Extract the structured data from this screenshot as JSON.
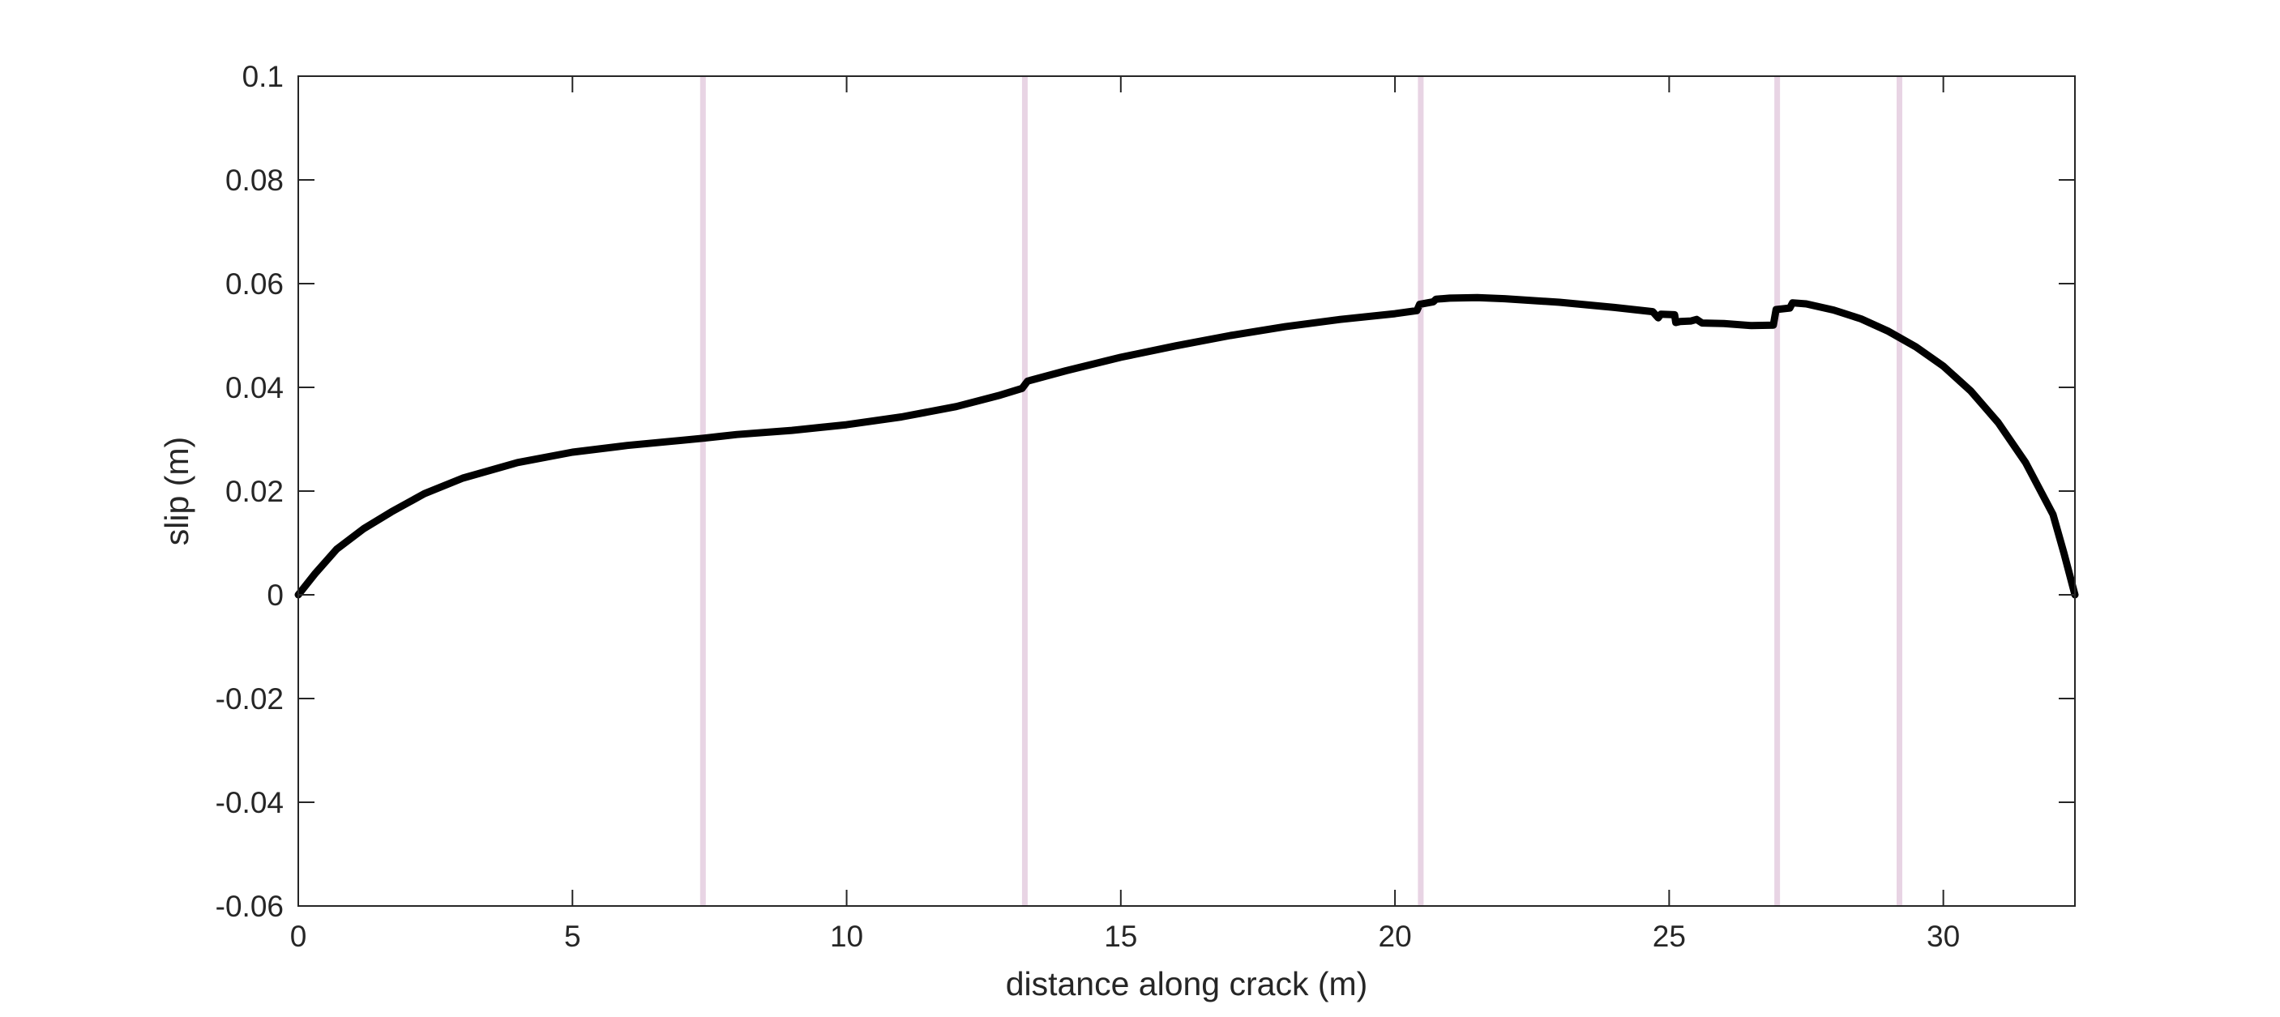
{
  "chart_data": {
    "type": "line",
    "title": "",
    "xlabel": "distance along crack (m)",
    "ylabel": "slip (m)",
    "xlim": [
      0,
      32.4
    ],
    "ylim": [
      -0.06,
      0.1
    ],
    "x_ticks": [
      0,
      5,
      10,
      15,
      20,
      25,
      30
    ],
    "x_tick_labels": [
      "0",
      "5",
      "10",
      "15",
      "20",
      "25",
      "30"
    ],
    "y_ticks": [
      -0.06,
      -0.04,
      -0.02,
      0,
      0.02,
      0.04,
      0.06,
      0.08,
      0.1
    ],
    "y_tick_labels": [
      "-0.06",
      "-0.04",
      "-0.02",
      "0",
      "0.02",
      "0.04",
      "0.06",
      "0.08",
      "0.1"
    ],
    "grid": false,
    "legend": "none",
    "vertical_markers": {
      "color": "#e8d4e4",
      "x": [
        7.38,
        13.25,
        20.47,
        26.97,
        29.2
      ]
    },
    "series": [
      {
        "color": "#000000",
        "x": [
          0,
          0.3,
          0.7,
          1.2,
          1.7,
          2.3,
          3,
          4,
          5,
          6,
          7,
          7.4,
          8,
          9,
          10,
          11,
          12,
          12.8,
          13.2,
          13.3,
          14,
          15,
          16,
          17,
          18,
          19,
          20,
          20.4,
          20.45,
          20.7,
          20.75,
          21,
          21.5,
          22,
          23,
          24,
          24.7,
          24.8,
          24.85,
          25.1,
          25.12,
          25.2,
          25.4,
          25.5,
          25.6,
          26,
          26.5,
          26.9,
          26.95,
          27.2,
          27.25,
          27.5,
          28,
          28.5,
          29,
          29.5,
          30,
          30.5,
          31,
          31.5,
          32,
          32.2,
          32.4
        ],
        "y": [
          0,
          0.004,
          0.0088,
          0.0128,
          0.016,
          0.0195,
          0.0225,
          0.0255,
          0.0275,
          0.0288,
          0.0298,
          0.0302,
          0.0309,
          0.0317,
          0.0328,
          0.0343,
          0.0363,
          0.0385,
          0.0398,
          0.0412,
          0.0432,
          0.0458,
          0.048,
          0.05,
          0.0517,
          0.0531,
          0.0542,
          0.0548,
          0.056,
          0.0565,
          0.057,
          0.0572,
          0.0573,
          0.0571,
          0.0564,
          0.0554,
          0.0546,
          0.0534,
          0.0541,
          0.054,
          0.0525,
          0.0527,
          0.0528,
          0.0531,
          0.0524,
          0.0523,
          0.0519,
          0.052,
          0.055,
          0.0553,
          0.0563,
          0.0561,
          0.0549,
          0.0532,
          0.0508,
          0.0478,
          0.0441,
          0.0393,
          0.0332,
          0.0255,
          0.0155,
          0.008,
          0
        ]
      }
    ]
  }
}
